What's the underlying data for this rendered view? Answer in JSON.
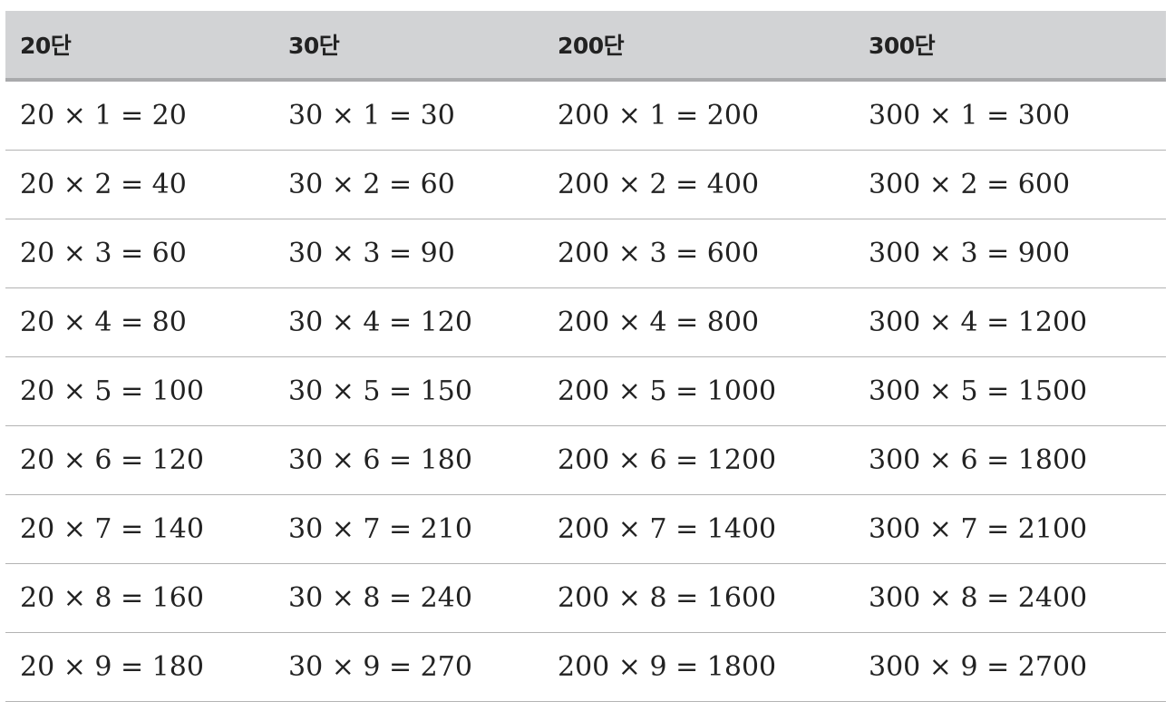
{
  "table": {
    "headers": [
      "20단",
      "30단",
      "200단",
      "300단"
    ],
    "rows": [
      [
        "20 × 1 = 20",
        "30 × 1 = 30",
        "200 × 1 = 200",
        "300 × 1 = 300"
      ],
      [
        "20 × 2 = 40",
        "30 × 2 = 60",
        "200 × 2 = 400",
        "300 × 2 = 600"
      ],
      [
        "20 × 3 = 60",
        "30 × 3 = 90",
        "200 × 3 = 600",
        "300 × 3 = 900"
      ],
      [
        "20 × 4 = 80",
        "30 × 4 = 120",
        "200 × 4 = 800",
        "300 × 4 = 1200"
      ],
      [
        "20 × 5 = 100",
        "30 × 5 = 150",
        "200 × 5 = 1000",
        "300 × 5 = 1500"
      ],
      [
        "20 × 6 = 120",
        "30 × 6 = 180",
        "200 × 6 = 1200",
        "300 × 6 = 1800"
      ],
      [
        "20 × 7 = 140",
        "30 × 7 = 210",
        "200 × 7 = 1400",
        "300 × 7 = 2100"
      ],
      [
        "20 × 8 = 160",
        "30 × 8 = 240",
        "200 × 8 = 1600",
        "300 × 8 = 2400"
      ],
      [
        "20 × 9 = 180",
        "30 × 9 = 270",
        "200 × 9 = 1800",
        "300 × 9 = 2700"
      ]
    ]
  },
  "colors": {
    "header_bg": "#d2d3d5",
    "header_border": "#a9aaac",
    "row_border": "#b3b3b3",
    "text": "#222222"
  }
}
